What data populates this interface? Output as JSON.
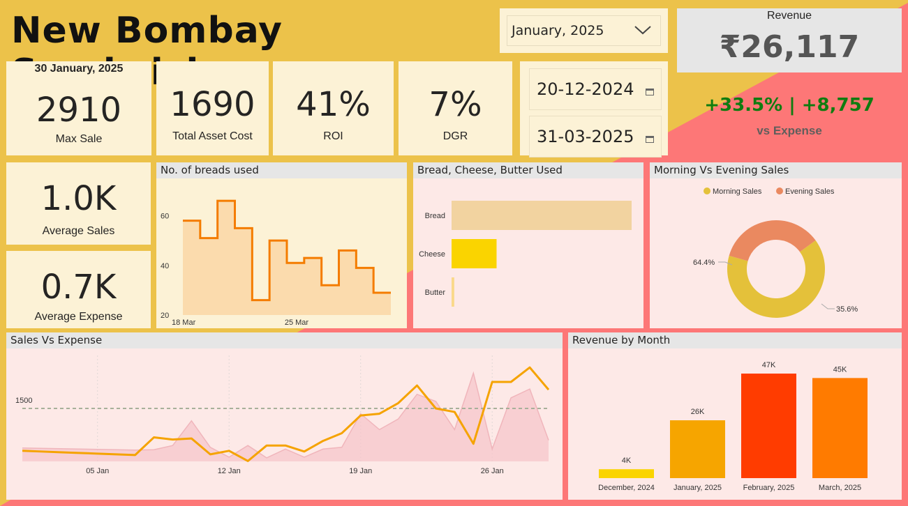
{
  "title": "New Bombay Sandwich",
  "month_filter": {
    "value": "January, 2025"
  },
  "date_range": {
    "start": "20-12-2024",
    "end": "31-03-2025"
  },
  "revenue_card": {
    "label": "Revenue",
    "value": "₹26,117",
    "delta": "+33.5% | +8,757",
    "delta_label": "vs Expense",
    "delta_color": "#107c10"
  },
  "kpis": {
    "date": "30 January, 2025",
    "max_sale": {
      "value": "2910",
      "label": "Max Sale"
    },
    "asset_cost": {
      "value": "1690",
      "label": "Total Asset Cost"
    },
    "roi": {
      "value": "41%",
      "label": "ROI"
    },
    "dgr": {
      "value": "7%",
      "label": "DGR"
    },
    "avg_sales": {
      "value": "1.0K",
      "label": "Average Sales"
    },
    "avg_expense": {
      "value": "0.7K",
      "label": "Average Expense"
    }
  },
  "chart_data": [
    {
      "type": "area",
      "title": "No. of breads used",
      "x_ticks": [
        "18 Mar",
        "25 Mar"
      ],
      "y_ticks": [
        "60",
        "40",
        "20"
      ],
      "ylim": [
        20,
        68
      ],
      "values": [
        58,
        51,
        66,
        55,
        26,
        50,
        41,
        43,
        32,
        46,
        39,
        29
      ],
      "color": "#f47c00",
      "fill": "#fbd8a8"
    },
    {
      "type": "bar",
      "title": "Bread, Cheese, Butter Used",
      "categories": [
        "Bread",
        "Cheese",
        "Butter"
      ],
      "values": [
        100,
        25,
        1.5
      ],
      "colors": [
        "#f2d3a0",
        "#fad400",
        "#fad98a"
      ]
    },
    {
      "type": "pie",
      "title": "Morning Vs Evening Sales",
      "legend": [
        "Morning Sales",
        "Evening Sales"
      ],
      "values": [
        64.4,
        35.6
      ],
      "labels": [
        "64.4%",
        "35.6%"
      ],
      "colors": [
        "#e4c13a",
        "#ea8960"
      ]
    },
    {
      "type": "line",
      "title": "Sales Vs Expense",
      "x_ticks": [
        "05 Jan",
        "12 Jan",
        "19 Jan",
        "26 Jan"
      ],
      "reference_label": "1500",
      "reference_value": 1500,
      "ylim": [
        0,
        3000
      ],
      "sales": [
        300,
        280,
        260,
        240,
        220,
        200,
        180,
        680,
        620,
        650,
        200,
        300,
        10,
        450,
        450,
        280,
        580,
        800,
        1300,
        1350,
        1650,
        2150,
        1500,
        1400,
        500,
        2250,
        2250,
        2660,
        2030
      ],
      "expense": [
        380,
        370,
        360,
        350,
        340,
        330,
        320,
        330,
        450,
        1150,
        400,
        120,
        450,
        100,
        350,
        120,
        350,
        400,
        1350,
        900,
        1200,
        1900,
        1700,
        900,
        2500,
        350,
        1800,
        2050,
        600
      ],
      "sales_color": "#f5a300",
      "expense_fill": "#f5c6cb"
    },
    {
      "type": "bar",
      "title": "Revenue by Month",
      "categories": [
        "December, 2024",
        "January, 2025",
        "February, 2025",
        "March, 2025"
      ],
      "values": [
        4,
        26,
        47,
        45
      ],
      "value_labels": [
        "4K",
        "26K",
        "47K",
        "45K"
      ],
      "colors": [
        "#fad400",
        "#f6a500",
        "#ff3c00",
        "#ff7b00"
      ]
    }
  ]
}
